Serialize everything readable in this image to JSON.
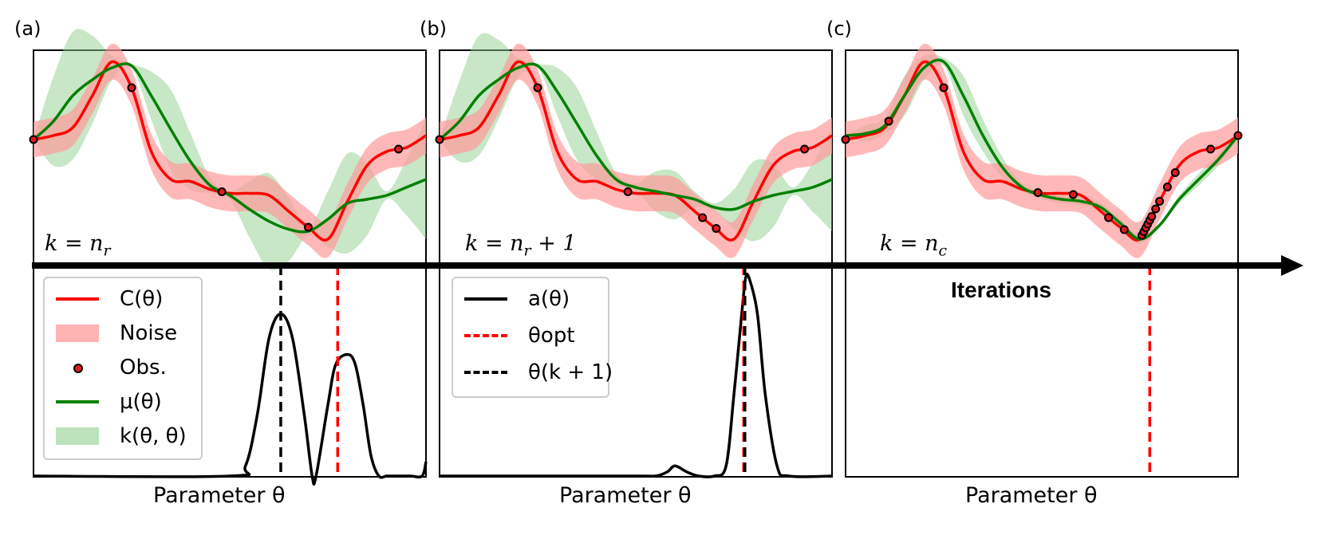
{
  "panels": [
    {
      "label": "(a)",
      "k_label": {
        "pre": "k = n",
        "sub": "r",
        "post": ""
      },
      "x_axis": "Parameter θ"
    },
    {
      "label": "(b)",
      "k_label": {
        "pre": "k = n",
        "sub": "r",
        "post": " + 1"
      },
      "x_axis": "Parameter θ"
    },
    {
      "label": "(c)",
      "k_label": {
        "pre": "k = n",
        "sub": "c",
        "post": ""
      },
      "x_axis": "Parameter θ"
    }
  ],
  "arrow_label": "Iterations",
  "legend_a": [
    {
      "label": "C(θ)",
      "style": "red-line"
    },
    {
      "label": "Noise",
      "style": "pink-band"
    },
    {
      "label": "Obs.",
      "style": "dot"
    },
    {
      "label": "μ(θ)",
      "style": "green-line"
    },
    {
      "label": "k(θ, θ)",
      "style": "green-band"
    }
  ],
  "legend_b": [
    {
      "label": "a(θ)",
      "style": "black-line"
    },
    {
      "label": "θopt",
      "style": "red-dash"
    },
    {
      "label": "θ(k + 1)",
      "style": "black-dash"
    }
  ],
  "colors": {
    "cost": "#ff0000",
    "noise": "#ff9a9a",
    "mean": "#008000",
    "variance": "#8fd08f",
    "acq": "#000000",
    "opt": "#ff0000",
    "next": "#000000",
    "obs_fill": "#e31a1c"
  },
  "chart_data": {
    "type": "line",
    "x_range": [
      0,
      1
    ],
    "cost_function": {
      "x": [
        0,
        0.05,
        0.1,
        0.15,
        0.2,
        0.25,
        0.3,
        0.35,
        0.4,
        0.45,
        0.5,
        0.55,
        0.6,
        0.65,
        0.7,
        0.75,
        0.8,
        0.85,
        0.9,
        0.95,
        1
      ],
      "y": [
        0.42,
        0.4,
        0.36,
        0.2,
        0.03,
        0.16,
        0.48,
        0.62,
        0.63,
        0.67,
        0.69,
        0.69,
        0.7,
        0.78,
        0.86,
        0.92,
        0.73,
        0.55,
        0.48,
        0.46,
        0.4
      ]
    },
    "noise_halfwidth": 0.09,
    "panels": [
      {
        "id": "a",
        "observations_x": [
          0.0,
          0.25,
          0.48,
          0.7,
          0.93
        ],
        "gp_mean_x": [
          0,
          0.05,
          0.1,
          0.15,
          0.2,
          0.25,
          0.3,
          0.35,
          0.4,
          0.45,
          0.5,
          0.55,
          0.6,
          0.65,
          0.7,
          0.75,
          0.8,
          0.85,
          0.9,
          0.95,
          1
        ],
        "gp_mean_y": [
          0.42,
          0.33,
          0.2,
          0.12,
          0.06,
          0.05,
          0.2,
          0.37,
          0.53,
          0.65,
          0.7,
          0.77,
          0.83,
          0.87,
          0.88,
          0.82,
          0.74,
          0.72,
          0.7,
          0.66,
          0.62
        ],
        "gp_std_y": [
          0,
          0.22,
          0.32,
          0.22,
          0.06,
          0.01,
          0.12,
          0.2,
          0.14,
          0.04,
          0.02,
          0.14,
          0.24,
          0.16,
          0.02,
          0.14,
          0.25,
          0.18,
          0.02,
          0.14,
          0.3
        ],
        "acquisition_x": [
          0,
          0.5,
          0.54,
          0.57,
          0.6,
          0.63,
          0.66,
          0.69,
          0.71,
          0.72,
          0.75,
          0.77,
          0.8,
          0.82,
          0.84,
          0.86,
          0.88,
          0.9,
          0.92,
          0.96,
          0.99,
          1
        ],
        "acquisition_y": [
          0,
          0,
          0.05,
          0.3,
          0.68,
          0.8,
          0.68,
          0.3,
          0,
          0,
          0.35,
          0.55,
          0.6,
          0.55,
          0.35,
          0.1,
          0,
          0,
          0,
          0,
          0,
          0.07
        ],
        "theta_next": 0.63,
        "theta_opt": 0.775
      },
      {
        "id": "b",
        "observations_x": [
          0.0,
          0.25,
          0.48,
          0.67,
          0.705,
          0.93
        ],
        "gp_mean_x": [
          0,
          0.05,
          0.1,
          0.15,
          0.2,
          0.25,
          0.3,
          0.35,
          0.4,
          0.45,
          0.5,
          0.55,
          0.6,
          0.65,
          0.7,
          0.75,
          0.8,
          0.85,
          0.9,
          0.95,
          1
        ],
        "gp_mean_y": [
          0.42,
          0.33,
          0.2,
          0.12,
          0.06,
          0.05,
          0.18,
          0.34,
          0.5,
          0.62,
          0.66,
          0.68,
          0.7,
          0.72,
          0.76,
          0.77,
          0.73,
          0.7,
          0.68,
          0.66,
          0.62
        ],
        "gp_std_y": [
          0,
          0.2,
          0.3,
          0.2,
          0.05,
          0.01,
          0.12,
          0.18,
          0.12,
          0.03,
          0.02,
          0.1,
          0.12,
          0.04,
          0.02,
          0.1,
          0.2,
          0.16,
          0.02,
          0.12,
          0.26
        ],
        "acquisition_x": [
          0,
          0.5,
          0.55,
          0.58,
          0.6,
          0.63,
          0.66,
          0.7,
          0.73,
          0.75,
          0.77,
          0.78,
          0.79,
          0.81,
          0.83,
          0.86,
          0.89,
          1
        ],
        "acquisition_y": [
          0,
          0,
          0,
          0.02,
          0.05,
          0.02,
          0,
          0,
          0.05,
          0.4,
          0.8,
          0.98,
          0.97,
          0.8,
          0.4,
          0.05,
          0,
          0
        ],
        "theta_next": 0.778,
        "theta_opt": 0.775
      },
      {
        "id": "c",
        "observations_x": [
          0.0,
          0.11,
          0.25,
          0.49,
          0.58,
          0.67,
          0.71,
          0.755,
          0.76,
          0.765,
          0.77,
          0.775,
          0.78,
          0.79,
          0.8,
          0.82,
          0.84,
          0.93,
          1.0
        ],
        "gp_mean_x": [
          0,
          0.05,
          0.1,
          0.15,
          0.2,
          0.25,
          0.3,
          0.35,
          0.4,
          0.45,
          0.5,
          0.55,
          0.6,
          0.65,
          0.7,
          0.75,
          0.8,
          0.85,
          0.9,
          0.95,
          1
        ],
        "gp_mean_y": [
          0.4,
          0.39,
          0.35,
          0.2,
          0.06,
          0.03,
          0.2,
          0.4,
          0.56,
          0.66,
          0.7,
          0.72,
          0.73,
          0.76,
          0.84,
          0.92,
          0.85,
          0.72,
          0.62,
          0.52,
          0.4
        ],
        "gp_std_y": [
          0,
          0.04,
          0.04,
          0.1,
          0.06,
          0.02,
          0.1,
          0.08,
          0.05,
          0.02,
          0.02,
          0.02,
          0.02,
          0.02,
          0.02,
          0.02,
          0.01,
          0.02,
          0.03,
          0.03,
          0.01
        ],
        "acquisition_x": [],
        "acquisition_y": [],
        "theta_next": null,
        "theta_opt": 0.775
      }
    ]
  }
}
